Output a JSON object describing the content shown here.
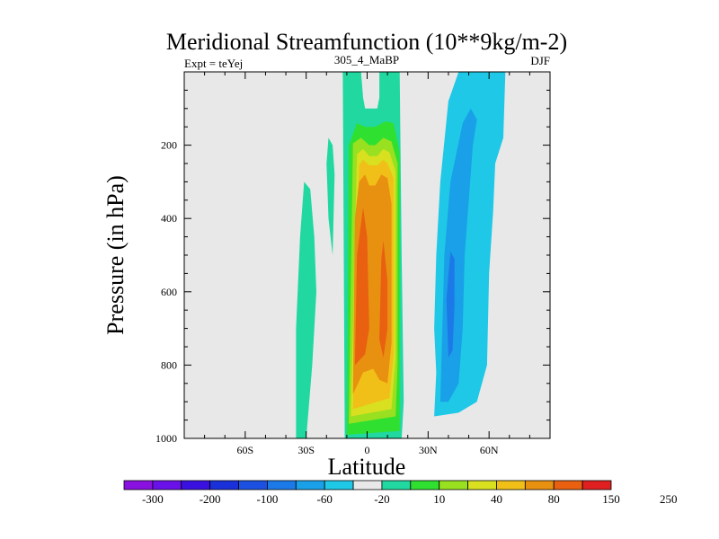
{
  "chart_data": {
    "type": "filled-contour",
    "title": "Meridional Streamfunction (10**9kg/m-2)",
    "subtitle_left": "Expt = teYej",
    "subtitle_center": "305_4_MaBP",
    "subtitle_right": "DJF",
    "xlabel": "Latitude",
    "ylabel": "Pressure (in hPa)",
    "xlim": [
      -90,
      90
    ],
    "ylim": [
      1000,
      0
    ],
    "x_ticks": [
      {
        "value": -60,
        "label": "60S"
      },
      {
        "value": -30,
        "label": "30S"
      },
      {
        "value": 0,
        "label": "0"
      },
      {
        "value": 30,
        "label": "30N"
      },
      {
        "value": 60,
        "label": "60N"
      }
    ],
    "y_ticks": [
      {
        "value": 200,
        "label": "200"
      },
      {
        "value": 400,
        "label": "400"
      },
      {
        "value": 600,
        "label": "600"
      },
      {
        "value": 800,
        "label": "800"
      },
      {
        "value": 1000,
        "label": "1000"
      }
    ],
    "background_color": "#e8e8e8",
    "colorbar": {
      "colors": [
        "#8a10e0",
        "#6a10e8",
        "#3a10e0",
        "#1a30d8",
        "#1c50e0",
        "#1c7ae8",
        "#1aa0e8",
        "#1ec8e6",
        "#e8e8e8",
        "#20d8a0",
        "#30e030",
        "#98e020",
        "#d8e020",
        "#f0c018",
        "#e89010",
        "#e86010",
        "#e02020"
      ],
      "labels": [
        {
          "after_box": 1,
          "text": "-300"
        },
        {
          "after_box": 3,
          "text": "-200"
        },
        {
          "after_box": 5,
          "text": "-100"
        },
        {
          "after_box": 7,
          "text": "-60"
        },
        {
          "after_box": 9,
          "text": "-20"
        },
        {
          "after_box": 11,
          "text": "10"
        },
        {
          "after_box": 13,
          "text": "40"
        },
        {
          "after_box": 15,
          "text": "80"
        },
        {
          "after_box": 17,
          "text": "150"
        },
        {
          "after_box": 19,
          "text": "250"
        }
      ]
    },
    "regions": [
      {
        "name": "sh-cell-10",
        "color": "#20d8a0",
        "points": [
          [
            -35,
            1000
          ],
          [
            -30,
            1000
          ],
          [
            -27,
            800
          ],
          [
            -25,
            600
          ],
          [
            -26,
            450
          ],
          [
            -28,
            320
          ],
          [
            -31,
            300
          ],
          [
            -33,
            450
          ],
          [
            -35,
            700
          ]
        ]
      },
      {
        "name": "sh-upper-10",
        "color": "#20d8a0",
        "points": [
          [
            -17,
            500
          ],
          [
            -16,
            280
          ],
          [
            -17,
            200
          ],
          [
            -19,
            180
          ],
          [
            -20,
            250
          ],
          [
            -19,
            400
          ]
        ]
      },
      {
        "name": "hadley-10",
        "color": "#20d8a0",
        "points": [
          [
            -11,
            1010
          ],
          [
            -12,
            0
          ],
          [
            -3,
            0
          ],
          [
            -2,
            70
          ],
          [
            -1,
            100
          ],
          [
            5,
            100
          ],
          [
            6,
            70
          ],
          [
            6,
            0
          ],
          [
            16,
            0
          ],
          [
            17,
            500
          ],
          [
            18,
            900
          ],
          [
            17,
            1010
          ]
        ]
      },
      {
        "name": "hadley-20",
        "color": "#30e030",
        "points": [
          [
            -10,
            990
          ],
          [
            -9,
            200
          ],
          [
            -5,
            140
          ],
          [
            -1,
            150
          ],
          [
            4,
            150
          ],
          [
            9,
            135
          ],
          [
            13,
            140
          ],
          [
            16,
            220
          ],
          [
            16,
            800
          ],
          [
            16,
            980
          ]
        ]
      },
      {
        "name": "hadley-40",
        "color": "#98e020",
        "points": [
          [
            -9,
            960
          ],
          [
            -7,
            195
          ],
          [
            -3,
            180
          ],
          [
            1,
            200
          ],
          [
            4,
            200
          ],
          [
            8,
            180
          ],
          [
            12,
            190
          ],
          [
            15,
            250
          ],
          [
            15,
            800
          ],
          [
            14,
            940
          ]
        ]
      },
      {
        "name": "hadley-60",
        "color": "#d8e020",
        "points": [
          [
            -8,
            940
          ],
          [
            -5,
            225
          ],
          [
            -2,
            210
          ],
          [
            1,
            230
          ],
          [
            5,
            230
          ],
          [
            8,
            210
          ],
          [
            11,
            220
          ],
          [
            14,
            270
          ],
          [
            14,
            780
          ],
          [
            12,
            920
          ]
        ]
      },
      {
        "name": "hadley-80",
        "color": "#f0c018",
        "points": [
          [
            -7,
            920
          ],
          [
            -4,
            255
          ],
          [
            -2,
            240
          ],
          [
            1,
            255
          ],
          [
            5,
            255
          ],
          [
            8,
            240
          ],
          [
            10,
            250
          ],
          [
            13,
            290
          ],
          [
            13,
            770
          ],
          [
            11,
            890
          ]
        ]
      },
      {
        "name": "hadley-100",
        "color": "#e89010",
        "points": [
          [
            -7,
            880
          ],
          [
            -6,
            400
          ],
          [
            -4,
            300
          ],
          [
            -1,
            280
          ],
          [
            1,
            310
          ],
          [
            4,
            310
          ],
          [
            7,
            280
          ],
          [
            10,
            290
          ],
          [
            12,
            360
          ],
          [
            12,
            740
          ],
          [
            10,
            850
          ],
          [
            6,
            840
          ],
          [
            3,
            810
          ],
          [
            -2,
            820
          ]
        ]
      },
      {
        "name": "hadley-150-a",
        "color": "#e86010",
        "points": [
          [
            -6,
            800
          ],
          [
            -5,
            500
          ],
          [
            -2,
            370
          ],
          [
            0,
            450
          ],
          [
            1,
            700
          ],
          [
            -1,
            770
          ]
        ]
      },
      {
        "name": "hadley-150-b",
        "color": "#e86010",
        "points": [
          [
            7,
            510
          ],
          [
            8,
            460
          ],
          [
            10,
            570
          ],
          [
            10,
            700
          ],
          [
            8,
            780
          ],
          [
            6,
            730
          ]
        ]
      },
      {
        "name": "nh-cell-10",
        "color": "#1ec8e6",
        "points": [
          [
            33,
            940
          ],
          [
            34,
            820
          ],
          [
            33,
            700
          ],
          [
            34,
            500
          ],
          [
            36,
            300
          ],
          [
            40,
            80
          ],
          [
            45,
            0
          ],
          [
            68,
            0
          ],
          [
            67,
            180
          ],
          [
            63,
            250
          ],
          [
            62,
            380
          ],
          [
            60,
            550
          ],
          [
            59,
            800
          ],
          [
            54,
            900
          ],
          [
            45,
            930
          ]
        ]
      },
      {
        "name": "nh-cell-20",
        "color": "#1aa0e8",
        "points": [
          [
            36,
            900
          ],
          [
            37,
            700
          ],
          [
            38,
            500
          ],
          [
            41,
            300
          ],
          [
            47,
            140
          ],
          [
            51,
            100
          ],
          [
            54,
            130
          ],
          [
            52,
            200
          ],
          [
            50,
            350
          ],
          [
            48,
            500
          ],
          [
            47,
            700
          ],
          [
            45,
            850
          ],
          [
            40,
            900
          ]
        ]
      },
      {
        "name": "nh-cell-60",
        "color": "#1c7ae8",
        "points": [
          [
            40,
            780
          ],
          [
            39,
            620
          ],
          [
            41,
            490
          ],
          [
            43,
            510
          ],
          [
            43,
            640
          ],
          [
            42,
            760
          ]
        ]
      }
    ]
  }
}
